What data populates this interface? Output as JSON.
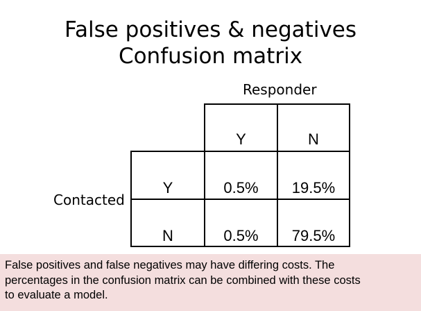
{
  "slide": {
    "title_line1": "False positives & negatives",
    "title_line2": "Confusion matrix"
  },
  "matrix": {
    "column_group_label": "Responder",
    "row_group_label": "Contacted",
    "column_headers": [
      "Y",
      "N"
    ],
    "row_headers": [
      "Y",
      "N"
    ],
    "rows": [
      [
        "0.5%",
        "19.5%"
      ],
      [
        "0.5%",
        "79.5%"
      ]
    ]
  },
  "note": {
    "lines": [
      "False positives and false negatives may have differing costs.  The",
      "percentages in the confusion matrix can be combined with these costs",
      "to evaluate a model."
    ],
    "background": "#f4dede"
  }
}
